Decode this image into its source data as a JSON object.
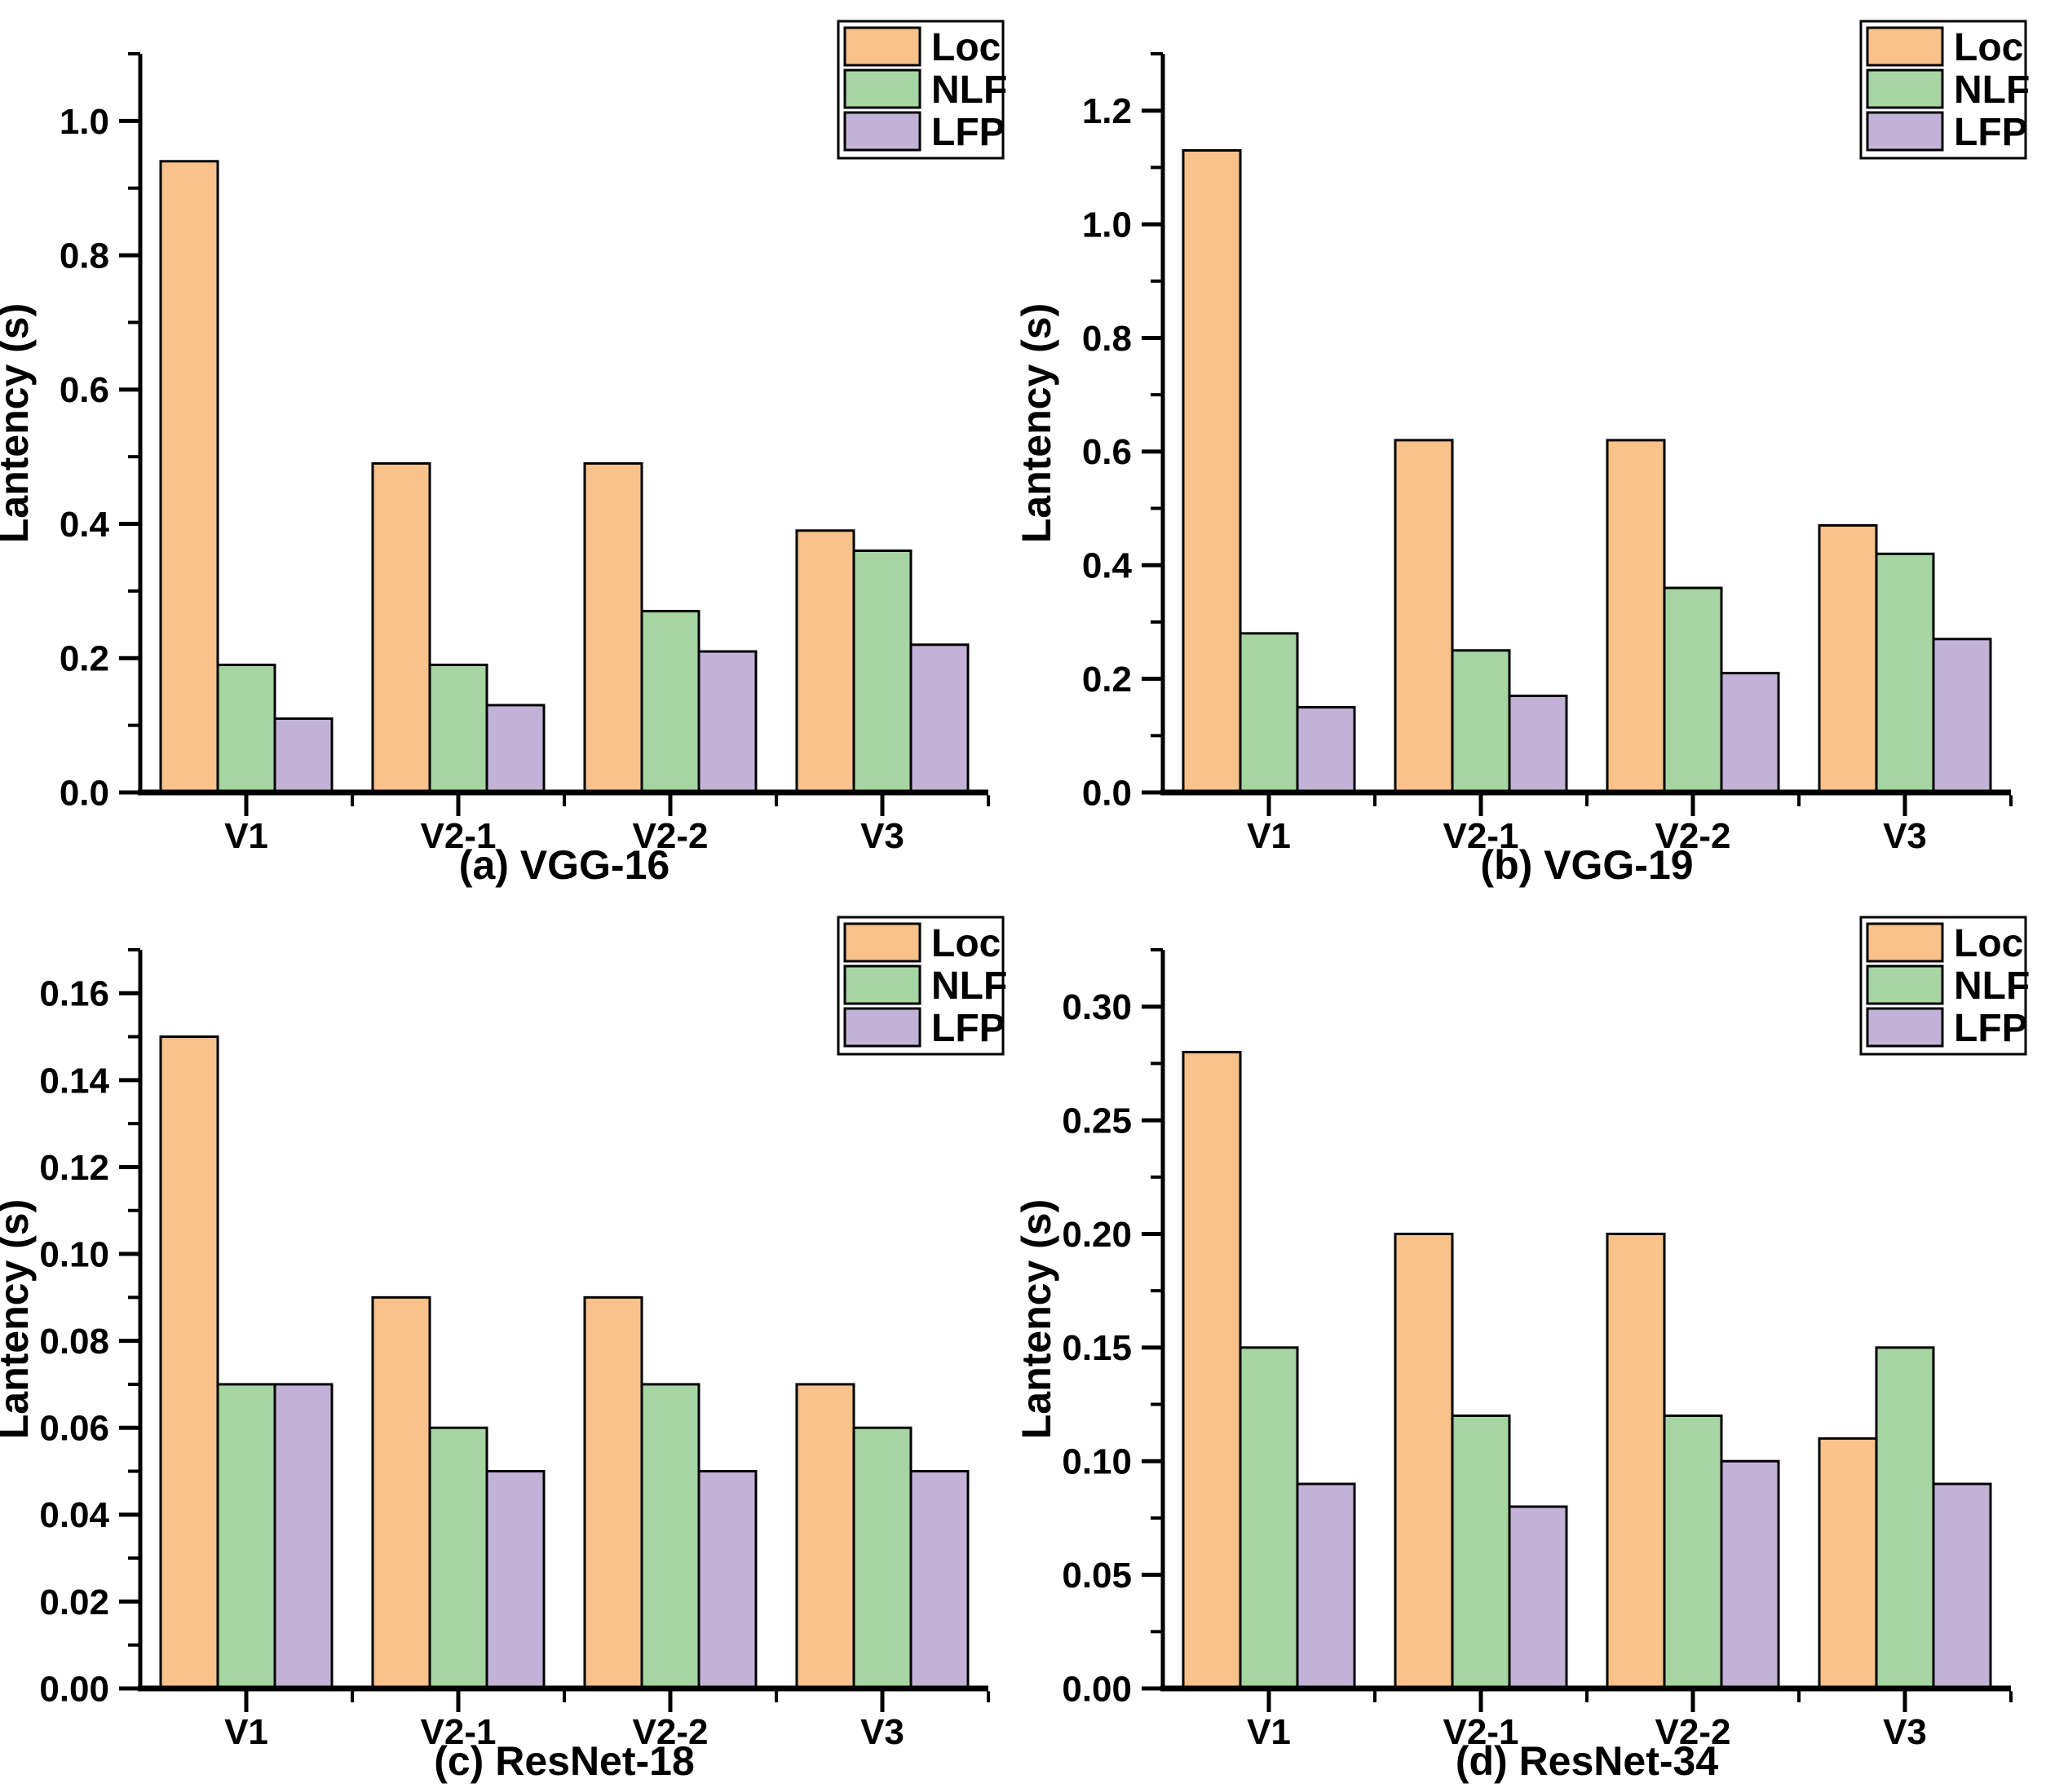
{
  "page": {
    "background": "#ffffff",
    "text_color": "#000000"
  },
  "legend": {
    "position": "top-right",
    "border_color": "#000000",
    "background": "#ffffff",
    "items": [
      {
        "label": "Loc",
        "color": "#F9C28A"
      },
      {
        "label": "NLF",
        "color": "#A6D5A2"
      },
      {
        "label": "LFP",
        "color": "#C3B2D8"
      }
    ]
  },
  "chart_data": [
    {
      "type": "bar",
      "caption": "(a) VGG-16",
      "xlabel": "",
      "ylabel": "Lantency (s)",
      "categories": [
        "V1",
        "V2-1",
        "V2-2",
        "V3"
      ],
      "series": [
        {
          "name": "Loc",
          "color": "#F9C28A",
          "values": [
            0.94,
            0.49,
            0.49,
            0.39
          ]
        },
        {
          "name": "NLF",
          "color": "#A6D5A2",
          "values": [
            0.19,
            0.19,
            0.27,
            0.36
          ]
        },
        {
          "name": "LFP",
          "color": "#C3B2D8",
          "values": [
            0.11,
            0.13,
            0.21,
            0.22
          ]
        }
      ],
      "axis": {
        "ymin": 0,
        "ymax": 1.1,
        "yticks": [
          "0.0",
          "0.2",
          "0.4",
          "0.6",
          "0.8",
          "1.0"
        ],
        "yminor_step": 0.1,
        "grid": false
      }
    },
    {
      "type": "bar",
      "caption": "(b) VGG-19",
      "xlabel": "",
      "ylabel": "Lantency (s)",
      "categories": [
        "V1",
        "V2-1",
        "V2-2",
        "V3"
      ],
      "series": [
        {
          "name": "Loc",
          "color": "#F9C28A",
          "values": [
            1.13,
            0.62,
            0.62,
            0.47
          ]
        },
        {
          "name": "NLF",
          "color": "#A6D5A2",
          "values": [
            0.28,
            0.25,
            0.36,
            0.42
          ]
        },
        {
          "name": "LFP",
          "color": "#C3B2D8",
          "values": [
            0.15,
            0.17,
            0.21,
            0.27
          ]
        }
      ],
      "axis": {
        "ymin": 0,
        "ymax": 1.3,
        "yticks": [
          "0.0",
          "0.2",
          "0.4",
          "0.6",
          "0.8",
          "1.0",
          "1.2"
        ],
        "yminor_step": 0.1,
        "grid": false
      }
    },
    {
      "type": "bar",
      "caption": "(c) ResNet-18",
      "xlabel": "",
      "ylabel": "Lantency (s)",
      "categories": [
        "V1",
        "V2-1",
        "V2-2",
        "V3"
      ],
      "series": [
        {
          "name": "Loc",
          "color": "#F9C28A",
          "values": [
            0.15,
            0.09,
            0.09,
            0.07
          ]
        },
        {
          "name": "NLF",
          "color": "#A6D5A2",
          "values": [
            0.07,
            0.06,
            0.07,
            0.06
          ]
        },
        {
          "name": "LFP",
          "color": "#C3B2D8",
          "values": [
            0.07,
            0.05,
            0.05,
            0.05
          ]
        }
      ],
      "axis": {
        "ymin": 0,
        "ymax": 0.17,
        "yticks": [
          "0.00",
          "0.02",
          "0.04",
          "0.06",
          "0.08",
          "0.10",
          "0.12",
          "0.14",
          "0.16"
        ],
        "yminor_step": 0.01,
        "grid": false
      }
    },
    {
      "type": "bar",
      "caption": "(d) ResNet-34",
      "xlabel": "",
      "ylabel": "Lantency (s)",
      "categories": [
        "V1",
        "V2-1",
        "V2-2",
        "V3"
      ],
      "series": [
        {
          "name": "Loc",
          "color": "#F9C28A",
          "values": [
            0.28,
            0.2,
            0.2,
            0.11
          ]
        },
        {
          "name": "NLF",
          "color": "#A6D5A2",
          "values": [
            0.15,
            0.12,
            0.12,
            0.15
          ]
        },
        {
          "name": "LFP",
          "color": "#C3B2D8",
          "values": [
            0.09,
            0.08,
            0.1,
            0.09
          ]
        }
      ],
      "axis": {
        "ymin": 0,
        "ymax": 0.325,
        "yticks": [
          "0.00",
          "0.05",
          "0.10",
          "0.15",
          "0.20",
          "0.25",
          "0.30"
        ],
        "yminor_step": 0.025,
        "grid": false
      }
    }
  ]
}
